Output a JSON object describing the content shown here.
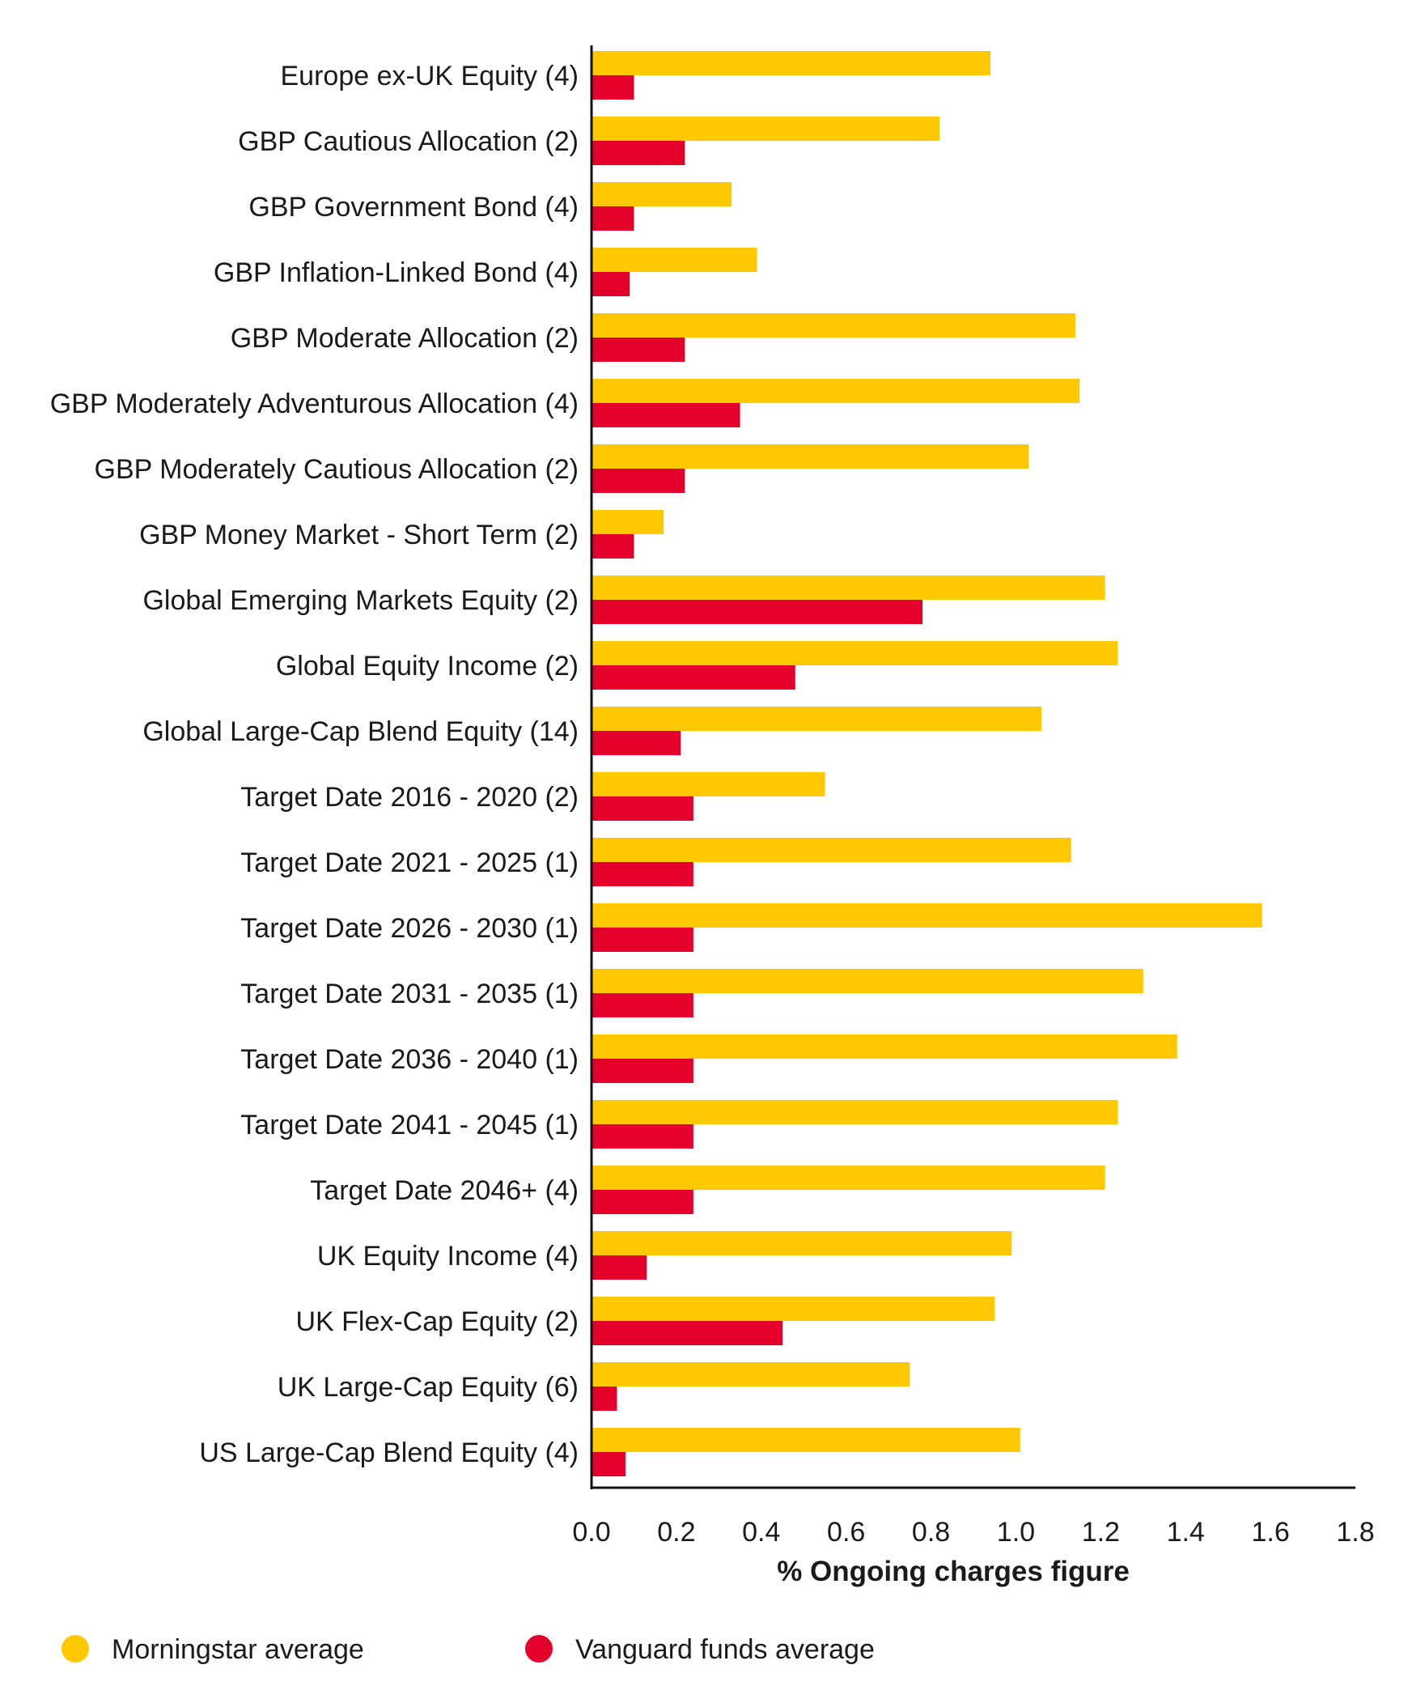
{
  "chart_data": {
    "type": "bar",
    "orientation": "horizontal",
    "xlabel": "% Ongoing charges figure",
    "ylabel": "",
    "xlim": [
      0.0,
      1.8
    ],
    "xticks": [
      "0.0",
      "0.2",
      "0.4",
      "0.6",
      "0.8",
      "1.0",
      "1.2",
      "1.4",
      "1.6",
      "1.8"
    ],
    "grid": false,
    "legend_position": "bottom-left",
    "categories": [
      "Europe ex-UK Equity (4)",
      "GBP Cautious Allocation (2)",
      "GBP Government Bond (4)",
      "GBP Inflation-Linked Bond (4)",
      "GBP Moderate Allocation (2)",
      "GBP Moderately Adventurous Allocation (4)",
      "GBP Moderately Cautious Allocation (2)",
      "GBP Money Market - Short Term (2)",
      "Global Emerging Markets Equity (2)",
      "Global Equity Income (2)",
      "Global Large-Cap Blend Equity (14)",
      "Target Date 2016 - 2020 (2)",
      "Target Date 2021 - 2025 (1)",
      "Target Date 2026 - 2030 (1)",
      "Target Date 2031 - 2035 (1)",
      "Target Date 2036 - 2040 (1)",
      "Target Date 2041 - 2045 (1)",
      "Target Date 2046+ (4)",
      "UK Equity Income (4)",
      "UK Flex-Cap Equity (2)",
      "UK Large-Cap Equity (6)",
      "US Large-Cap Blend Equity (4)"
    ],
    "series": [
      {
        "name": "Morningstar average",
        "color": "#FFC800",
        "values": [
          0.94,
          0.82,
          0.33,
          0.39,
          1.14,
          1.15,
          1.03,
          0.17,
          1.21,
          1.24,
          1.06,
          0.55,
          1.13,
          1.58,
          1.3,
          1.38,
          1.24,
          1.21,
          0.99,
          0.95,
          0.75,
          1.01
        ]
      },
      {
        "name": "Vanguard funds average",
        "color": "#E4002B",
        "values": [
          0.1,
          0.22,
          0.1,
          0.09,
          0.22,
          0.35,
          0.22,
          0.1,
          0.78,
          0.48,
          0.21,
          0.24,
          0.24,
          0.24,
          0.24,
          0.24,
          0.24,
          0.24,
          0.13,
          0.45,
          0.06,
          0.08
        ]
      }
    ]
  }
}
